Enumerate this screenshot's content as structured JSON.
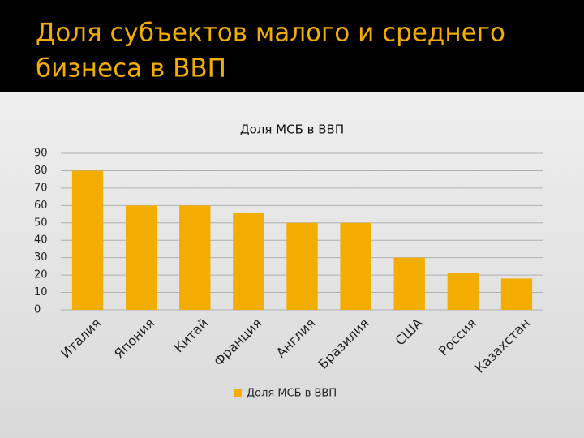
{
  "header": {
    "title_lines": [
      "Доля субъектов малого и среднего",
      "бизнеса в ВВП"
    ]
  },
  "chart_data": {
    "type": "bar",
    "title": "Доля МСБ в ВВП",
    "categories": [
      "Италия",
      "Япония",
      "Китай",
      "Франция",
      "Англия",
      "Бразилия",
      "США",
      "Россия",
      "Казахстан"
    ],
    "series": [
      {
        "name": "Доля МСБ в ВВП",
        "color": "#f2ad00",
        "values": [
          80,
          60,
          60,
          56,
          50,
          50,
          30,
          21,
          18
        ]
      }
    ],
    "ylim": [
      0,
      90
    ],
    "yticks": [
      0,
      10,
      20,
      30,
      40,
      50,
      60,
      70,
      80,
      90
    ],
    "grid": true,
    "legend": "bottom"
  }
}
